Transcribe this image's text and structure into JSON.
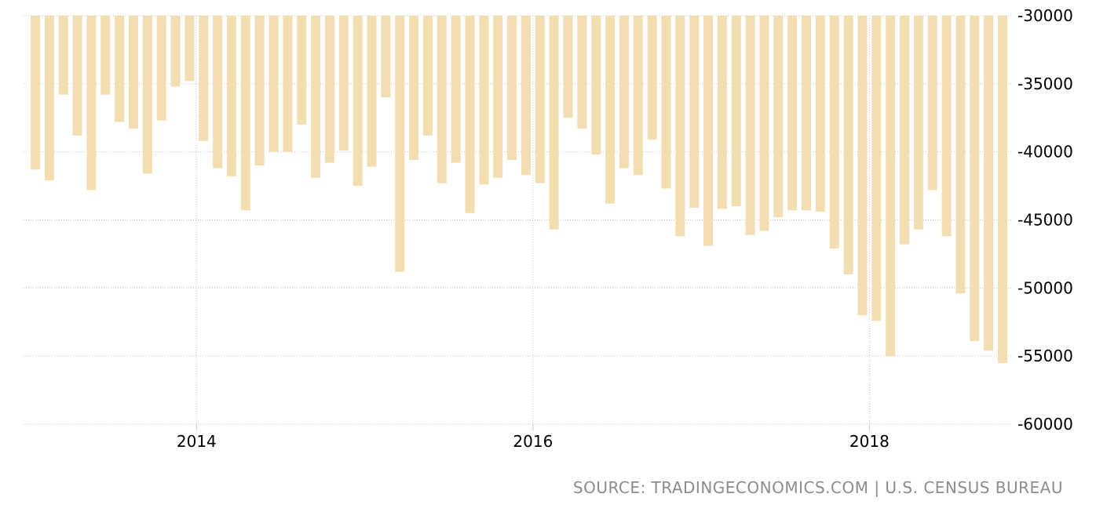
{
  "chart_data": {
    "type": "bar",
    "title": "",
    "xlabel": "",
    "ylabel": "",
    "x_start": "2013-01",
    "x_end": "2018-09",
    "x_ticks": [
      "2014",
      "2016",
      "2018"
    ],
    "y_ticks": [
      "-30000",
      "-35000",
      "-40000",
      "-45000",
      "-50000",
      "-55000",
      "-60000"
    ],
    "ylim": [
      -60000,
      -30000
    ],
    "grid": true,
    "bar_color": "#f2deb1",
    "series": [
      {
        "values": [
          -41300,
          -42100,
          -35800,
          -38800,
          -42800,
          -35800,
          -37800,
          -38300,
          -41600,
          -37700,
          -35200,
          -34800,
          -39200,
          -41200,
          -41800,
          -44300,
          -41000,
          -40000,
          -40000,
          -38000,
          -41900,
          -40800,
          -39900,
          -42500,
          -41100,
          -36000,
          -48800,
          -40600,
          -38800,
          -42300,
          -40800,
          -44500,
          -42400,
          -41900,
          -40600,
          -41700,
          -42300,
          -45700,
          -37500,
          -38300,
          -40200,
          -43800,
          -41200,
          -41700,
          -39100,
          -42700,
          -46200,
          -44100,
          -46900,
          -44200,
          -44000,
          -46100,
          -45800,
          -44800,
          -44300,
          -44300,
          -44400,
          -47100,
          -49000,
          -52000,
          -52400,
          -55000,
          -46800,
          -45700,
          -42800,
          -46200,
          -50400,
          -53900,
          -54600,
          -55500
        ]
      }
    ]
  },
  "footer": {
    "source": "SOURCE: TRADINGECONOMICS.COM | U.S. CENSUS BUREAU"
  }
}
